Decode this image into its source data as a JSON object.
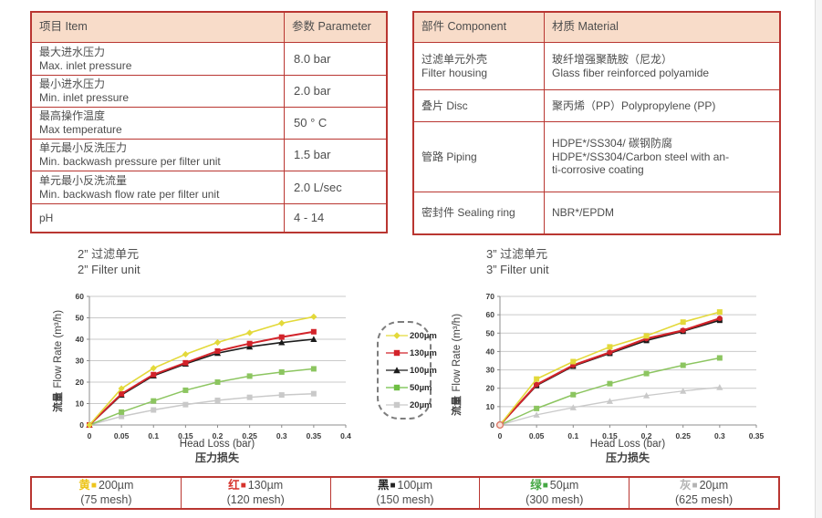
{
  "page": {
    "bg": "#ffffff",
    "table_border_color": "#b93631",
    "header_fill": "#f8dcc9",
    "text_color": "#4d4d4d"
  },
  "param_table": {
    "headers": [
      "项目 Item",
      "参数 Parameter"
    ],
    "rows": [
      {
        "zh": "最大进水压力",
        "en": "Max. inlet pressure",
        "value": "8.0 bar"
      },
      {
        "zh": "最小进水压力",
        "en": "Min. inlet pressure",
        "value": "2.0 bar"
      },
      {
        "zh": "最高操作温度",
        "en": "Max temperature",
        "value": "50 ° C"
      },
      {
        "zh": "单元最小反洗压力",
        "en": "Min. backwash pressure per filter unit",
        "value": "1.5 bar"
      },
      {
        "zh": "单元最小反洗流量",
        "en": "Min. backwash flow rate per filter unit",
        "value": "2.0 L/sec"
      },
      {
        "zh": "pH",
        "en": "",
        "value": "4 - 14"
      }
    ]
  },
  "component_table": {
    "headers": [
      "部件 Component",
      "材质 Material"
    ],
    "rows": [
      {
        "zh": "过滤单元外壳",
        "en": "Filter housing",
        "m1": "玻纤增强聚酰胺（尼龙）",
        "m2": "Glass fiber reinforced polyamide",
        "m3": ""
      },
      {
        "zh": "叠片 Disc",
        "en": "",
        "m1": "聚丙烯（PP）Polypropylene (PP)",
        "m2": "",
        "m3": ""
      },
      {
        "zh": "管路 Piping",
        "en": "",
        "m1": "HDPE*/SS304/ 碳钢防腐",
        "m2": "HDPE*/SS304/Carbon steel with an-",
        "m3": "ti-corrosive coating"
      },
      {
        "zh": "密封件 Sealing ring",
        "en": "",
        "m1": "NBR*/EPDM",
        "m2": "",
        "m3": ""
      }
    ]
  },
  "legend": {
    "items": [
      {
        "label": "200µm",
        "color": "#e3d93a",
        "marker": "diamond"
      },
      {
        "label": "130µm",
        "color": "#d2232a",
        "marker": "square"
      },
      {
        "label": "100µm",
        "color": "#1b1b1b",
        "marker": "triangle"
      },
      {
        "label": "50µm",
        "color": "#6fbf44",
        "marker": "square"
      },
      {
        "label": "20µm",
        "color": "#c9c9c9",
        "marker": "square"
      }
    ]
  },
  "chart_data": [
    {
      "type": "line",
      "title_zh": "2” 过滤单元",
      "title_en": "2” Filter unit",
      "ylabel_zh": "流量",
      "ylabel_en": "Flow Rate (m³/h)",
      "xlabel_en": "Head Loss (bar)",
      "xlabel_zh": "压力损失",
      "xlim": [
        0,
        0.4
      ],
      "ylim": [
        0,
        60
      ],
      "xstep": 0.05,
      "ystep": 10,
      "grid": "horizontal",
      "x": [
        0,
        0.05,
        0.1,
        0.15,
        0.2,
        0.25,
        0.3,
        0.35
      ],
      "series": [
        {
          "name": "200µm",
          "color": "#e3d93a",
          "marker": "diamond",
          "width": 1.6,
          "values": [
            0,
            17,
            26.5,
            33,
            38.5,
            43,
            47.5,
            50.5
          ]
        },
        {
          "name": "130µm",
          "color": "#d2232a",
          "marker": "square",
          "width": 2,
          "values": [
            0,
            14.5,
            23.5,
            29,
            34.5,
            38,
            41,
            43.5
          ]
        },
        {
          "name": "100µm",
          "color": "#1b1b1b",
          "marker": "triangle",
          "width": 1.6,
          "values": [
            0,
            14,
            23,
            28.5,
            33.5,
            36.5,
            38.5,
            40
          ]
        },
        {
          "name": "50µm",
          "color": "#8cc560",
          "marker": "square",
          "width": 1.5,
          "values": [
            0,
            6,
            11.2,
            16.2,
            20,
            22.8,
            24.7,
            26.2
          ]
        },
        {
          "name": "20µm",
          "color": "#c9c9c9",
          "marker": "square",
          "width": 1.5,
          "values": [
            0,
            4,
            7,
            9.5,
            11.5,
            12.9,
            14,
            14.6
          ]
        }
      ],
      "origin_ring": false
    },
    {
      "type": "line",
      "title_zh": "3” 过滤单元",
      "title_en": "3” Filter unit",
      "ylabel_zh": "流量",
      "ylabel_en": "Flow Rate (m³/h)",
      "xlabel_en": "Head Loss (bar)",
      "xlabel_zh": "压力损失",
      "xlim": [
        0,
        0.35
      ],
      "ylim": [
        0,
        70
      ],
      "xstep": 0.05,
      "ystep": 10,
      "grid": "horizontal",
      "x": [
        0,
        0.05,
        0.1,
        0.15,
        0.2,
        0.25,
        0.3
      ],
      "series": [
        {
          "name": "200µm",
          "color": "#e3d93a",
          "marker": "square",
          "width": 1.6,
          "values": [
            0,
            25,
            34.5,
            42.5,
            48.5,
            56,
            61.5
          ]
        },
        {
          "name": "130µm",
          "color": "#d2232a",
          "marker": "circle",
          "width": 2.2,
          "values": [
            0,
            22,
            32.5,
            39.5,
            47,
            51.5,
            58
          ]
        },
        {
          "name": "100µm",
          "color": "#1b1b1b",
          "marker": "square",
          "width": 1.6,
          "values": [
            0,
            21.5,
            32,
            39,
            46,
            51,
            57
          ]
        },
        {
          "name": "50µm",
          "color": "#8cc560",
          "marker": "square",
          "width": 1.5,
          "values": [
            0,
            9,
            16.5,
            22.5,
            28,
            32.5,
            36.5
          ]
        },
        {
          "name": "20µm",
          "color": "#c9c9c9",
          "marker": "triangle",
          "width": 1.3,
          "values": [
            0,
            5.5,
            9.5,
            13,
            16,
            18.5,
            20.5
          ]
        }
      ],
      "origin_ring": true
    }
  ],
  "mesh_table": {
    "items": [
      {
        "zh": "黄",
        "size": "200µm",
        "mesh": "(75 mesh)",
        "color": "#edc51c"
      },
      {
        "zh": "红",
        "size": "130µm",
        "mesh": "(120 mesh)",
        "color": "#d6332c"
      },
      {
        "zh": "黑",
        "size": "100µm",
        "mesh": "(150 mesh)",
        "color": "#222222"
      },
      {
        "zh": "绿",
        "size": "50µm",
        "mesh": "(300 mesh)",
        "color": "#45a844"
      },
      {
        "zh": "灰",
        "size": "20µm",
        "mesh": "(625 mesh)",
        "color": "#b3b3b3"
      }
    ]
  }
}
